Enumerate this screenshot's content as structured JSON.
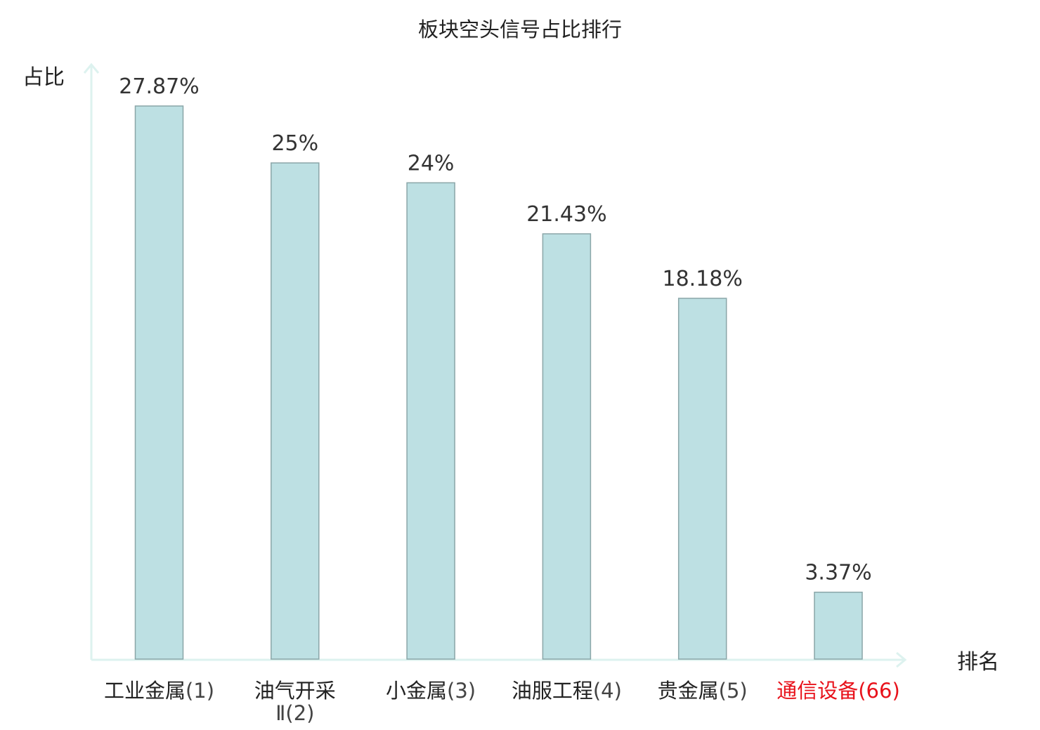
{
  "chart_data": {
    "type": "bar",
    "title": "板块空头信号占比排行",
    "ylabel": "占比",
    "xlabel": "排名",
    "categories": [
      {
        "line1": "工业金属",
        "line1_suffix": "(1)",
        "line2": ""
      },
      {
        "line1": "油气开采",
        "line1_suffix": "",
        "line2": "Ⅱ(2)"
      },
      {
        "line1": "小金属",
        "line1_suffix": "(3)",
        "line2": ""
      },
      {
        "line1": "油服工程",
        "line1_suffix": "(4)",
        "line2": ""
      },
      {
        "line1": "贵金属",
        "line1_suffix": "(5)",
        "line2": ""
      },
      {
        "line1": "通信设备",
        "line1_suffix": "(66)",
        "line2": ""
      }
    ],
    "values": [
      27.87,
      25,
      24,
      21.43,
      18.18,
      3.37
    ],
    "value_labels": [
      "27.87%",
      "25%",
      "24%",
      "21.43%",
      "18.18%",
      "3.37%"
    ],
    "highlight_index": 5,
    "ylim": [
      0,
      30
    ],
    "grid": false,
    "colors": {
      "bar_fill": "#bde0e3",
      "bar_stroke": "#8aa6a8",
      "axis": "#ddf2ef",
      "text": "#333333",
      "title": "#222222",
      "highlight": "#e8121b"
    }
  }
}
